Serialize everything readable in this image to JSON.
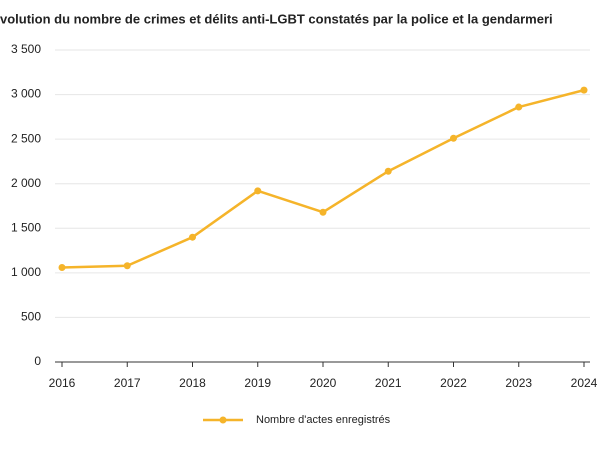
{
  "chart_data": {
    "type": "line",
    "title": "volution du nombre de crimes et délits anti-LGBT constatés par la police et la gendarmeri",
    "categories": [
      "2016",
      "2017",
      "2018",
      "2019",
      "2020",
      "2021",
      "2022",
      "2023",
      "2024"
    ],
    "series": [
      {
        "name": "Nombre d'actes enregistrés",
        "color": "#f5b42a",
        "values": [
          1060,
          1080,
          1400,
          1920,
          1680,
          2140,
          2510,
          2860,
          3050
        ]
      }
    ],
    "ylim": [
      0,
      3500
    ],
    "yticks": [
      0,
      500,
      {
        "value": 1000,
        "label": "1 000"
      },
      {
        "value": 1500,
        "label": "1 500"
      },
      {
        "value": 2000,
        "label": "2 000"
      },
      {
        "value": 2500,
        "label": "2 500"
      },
      {
        "value": 3000,
        "label": "3 000"
      },
      {
        "value": 3500,
        "label": "3 500"
      }
    ],
    "grid": true,
    "legend": "bottom"
  }
}
